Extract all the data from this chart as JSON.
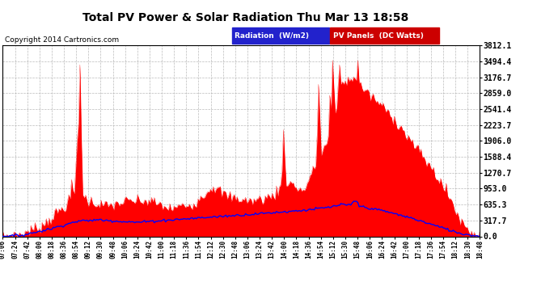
{
  "title": "Total PV Power & Solar Radiation Thu Mar 13 18:58",
  "copyright": "Copyright 2014 Cartronics.com",
  "legend_radiation": "Radiation  (W/m2)",
  "legend_pv": "PV Panels  (DC Watts)",
  "radiation_color": "#0000FF",
  "pv_color": "#FF0000",
  "legend_radiation_bg": "#2222CC",
  "legend_pv_bg": "#CC0000",
  "background_color": "#FFFFFF",
  "plot_bg_color": "#FFFFFF",
  "grid_color": "#AAAAAA",
  "yticks": [
    0.0,
    317.7,
    635.3,
    953.0,
    1270.7,
    1588.4,
    1906.0,
    2223.7,
    2541.4,
    2859.0,
    3176.7,
    3494.4,
    3812.1
  ],
  "ymax": 3812.1,
  "xtick_labels": [
    "07:06",
    "07:24",
    "07:42",
    "08:00",
    "08:18",
    "08:36",
    "08:54",
    "09:12",
    "09:30",
    "09:48",
    "10:06",
    "10:24",
    "10:42",
    "11:00",
    "11:18",
    "11:36",
    "11:54",
    "12:12",
    "12:30",
    "12:48",
    "13:06",
    "13:24",
    "13:42",
    "14:00",
    "14:18",
    "14:36",
    "14:54",
    "15:12",
    "15:30",
    "15:48",
    "16:06",
    "16:24",
    "16:42",
    "17:00",
    "17:18",
    "17:36",
    "17:54",
    "18:12",
    "18:30",
    "18:48"
  ]
}
